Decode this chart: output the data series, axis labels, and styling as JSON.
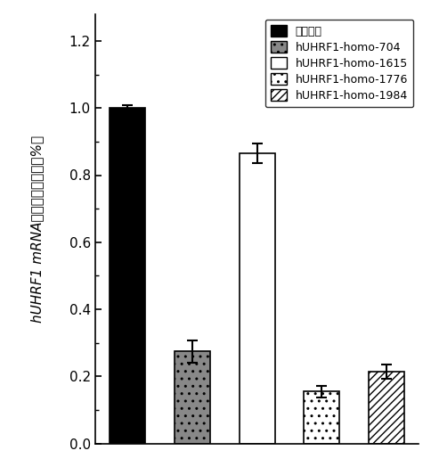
{
  "categories": [
    "阴性对照",
    "hUHRF1-homo-704",
    "hUHRF1-homo-1615",
    "hUHRF1-homo-1776",
    "hUHRF1-homo-1984"
  ],
  "values": [
    1.0,
    0.275,
    0.865,
    0.155,
    0.215
  ],
  "errors": [
    0.008,
    0.033,
    0.028,
    0.018,
    0.022
  ],
  "bar_colors": [
    "#000000",
    "#888888",
    "#ffffff",
    "#ffffff",
    "#ffffff"
  ],
  "bar_hatches": [
    null,
    "..",
    null,
    "..",
    "////"
  ],
  "bar_edgecolors": [
    "#000000",
    "#000000",
    "#000000",
    "#000000",
    "#000000"
  ],
  "ylim": [
    0,
    1.28
  ],
  "yticks": [
    0,
    0.2,
    0.4,
    0.6,
    0.8,
    1.0,
    1.2
  ],
  "legend_labels": [
    "阴性对照",
    "hUHRF1-homo-704",
    "hUHRF1-homo-1615",
    "hUHRF1-homo-1776",
    "hUHRF1-homo-1984"
  ],
  "legend_colors": [
    "#000000",
    "#888888",
    "#ffffff",
    "#ffffff",
    "#ffffff"
  ],
  "legend_hatches": [
    null,
    "..",
    null,
    "..",
    "////"
  ],
  "legend_edgecolors": [
    "#000000",
    "#000000",
    "#000000",
    "#000000",
    "#000000"
  ],
  "bar_width": 0.55,
  "figsize": [
    4.85,
    5.24
  ],
  "dpi": 100,
  "ylabel_italic": "hUHRF1 mRNA",
  "ylabel_normal": "水平（占阴性对照%）"
}
